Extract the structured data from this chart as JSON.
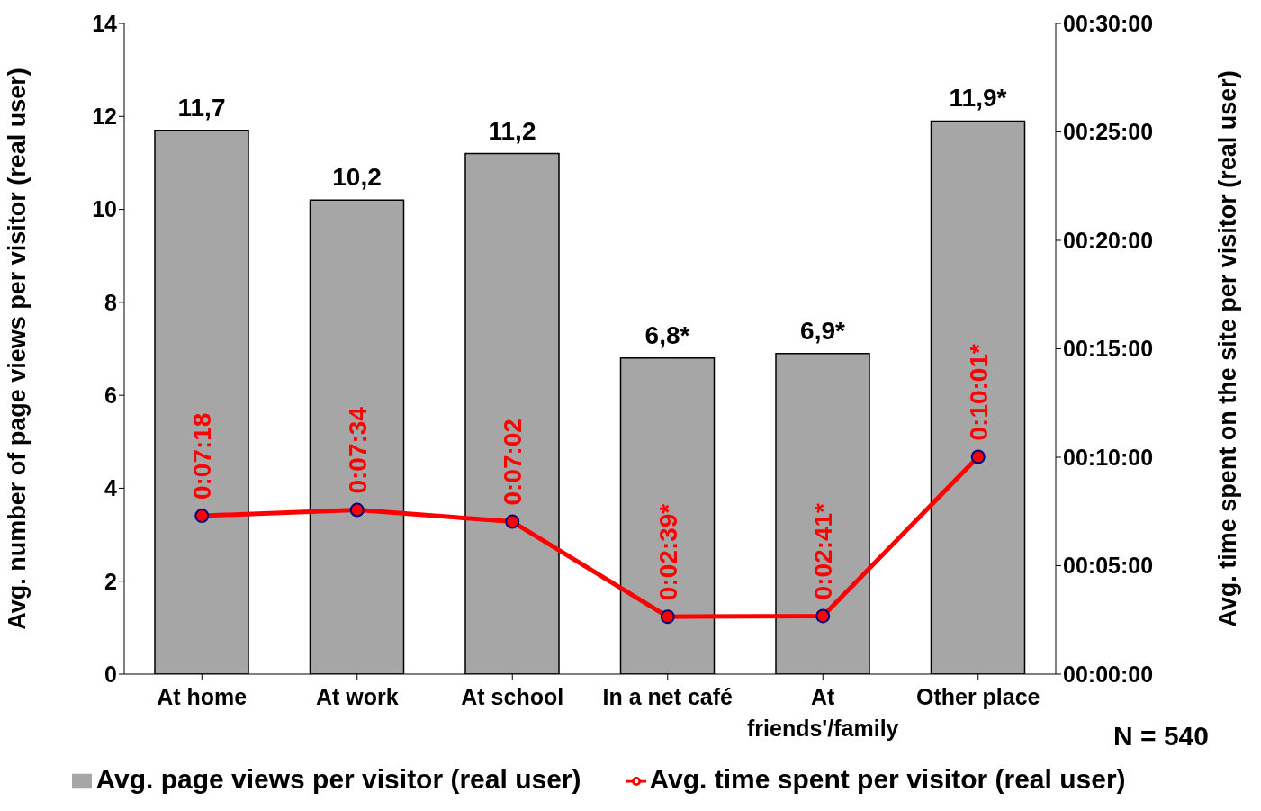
{
  "chart_data": {
    "type": "bar",
    "categories": [
      "At home",
      "At work",
      "At school",
      "In a net café",
      "At friends'/family",
      "Other place"
    ],
    "ylabel": "Avg. number of page views per visitor (real user)",
    "y2label": "Avg. time spent on the site per visitor (real user)",
    "series": [
      {
        "name": "Avg. page views per visitor (real user)",
        "color": "#a6a6a6",
        "values": [
          11.7,
          10.2,
          11.2,
          6.8,
          6.9,
          11.9
        ],
        "value_labels": [
          "11,7",
          "10,2",
          "11,2",
          "6,8*",
          "6,9*",
          "11,9*"
        ]
      },
      {
        "name": "Avg. time spent per visitor (real user)",
        "type": "line",
        "axis": "y2",
        "color": "#ff0000",
        "marker": "circle",
        "values": [
          7.3,
          7.57,
          7.03,
          2.65,
          2.68,
          10.02
        ],
        "value_labels": [
          "0:07:18",
          "0:07:34",
          "0:07:02",
          "0:02:39*",
          "0:02:41*",
          "0:10:01*"
        ]
      }
    ],
    "ylim": [
      0,
      14
    ],
    "yticks": [
      0,
      2,
      4,
      6,
      8,
      10,
      12,
      14
    ],
    "y2lim": [
      0,
      30
    ],
    "y2ticks": [
      {
        "value": 0,
        "label": "00:00:00"
      },
      {
        "value": 5,
        "label": "00:05:00"
      },
      {
        "value": 10,
        "label": "00:10:00"
      },
      {
        "value": 15,
        "label": "00:15:00"
      },
      {
        "value": 20,
        "label": "00:20:00"
      },
      {
        "value": 25,
        "label": "00:25:00"
      },
      {
        "value": 30,
        "label": "00:30:00"
      }
    ],
    "grid": false,
    "legend": "bottom",
    "annotations": [
      "N = 540"
    ]
  }
}
